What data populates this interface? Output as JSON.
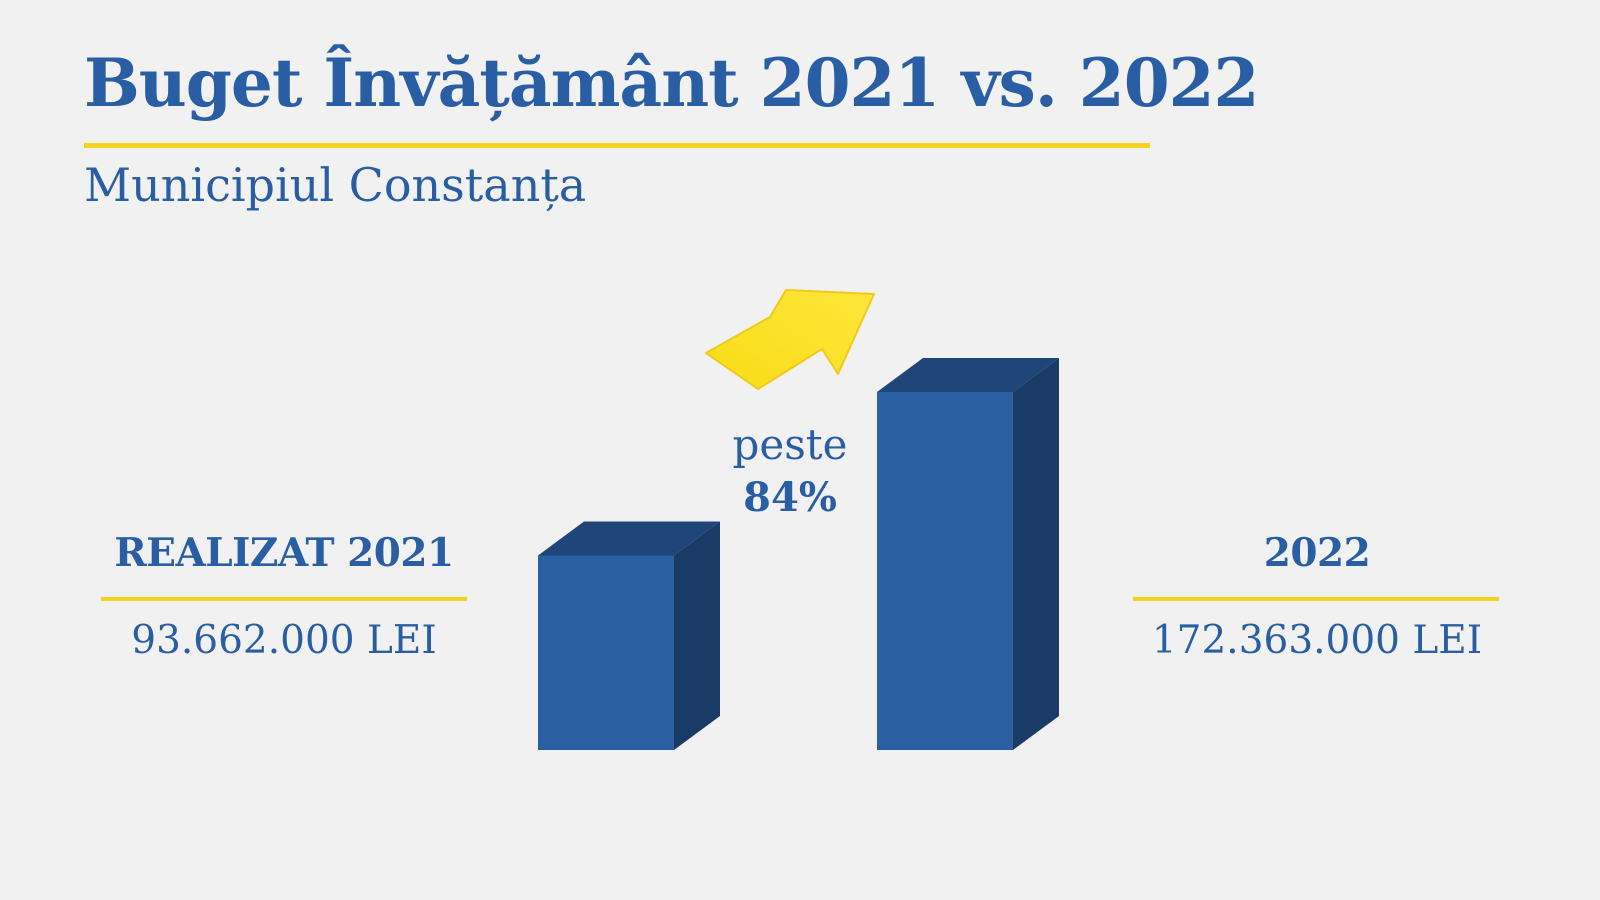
{
  "title": "Buget Învățământ 2021 vs. 2022",
  "subtitle": "Municipiul Constanța",
  "growth": {
    "word": "peste",
    "percent": "84%"
  },
  "left": {
    "year_label": "REALIZAT 2021",
    "value_label": "93.662.000 LEI"
  },
  "right": {
    "year_label": "2022",
    "value_label": "172.363.000 LEI"
  },
  "colors": {
    "accent_blue": "#2a5ea4",
    "highlight_yellow": "#f5d21d",
    "bar_front": "#2a5fa1",
    "bar_top": "#1f4579",
    "bar_side": "#193b66",
    "background": "#f1f1f1"
  },
  "arrow_icon": "up-right-arrow-icon",
  "chart_data": {
    "type": "bar",
    "categories": [
      "REALIZAT 2021",
      "2022"
    ],
    "values": [
      93662000,
      172363000
    ],
    "unit": "LEI",
    "title": "Buget Învățământ 2021 vs. 2022",
    "subtitle": "Municipiul Constanța",
    "annotation": "peste 84%",
    "three_d": true,
    "grid": false,
    "axes_visible": false
  }
}
